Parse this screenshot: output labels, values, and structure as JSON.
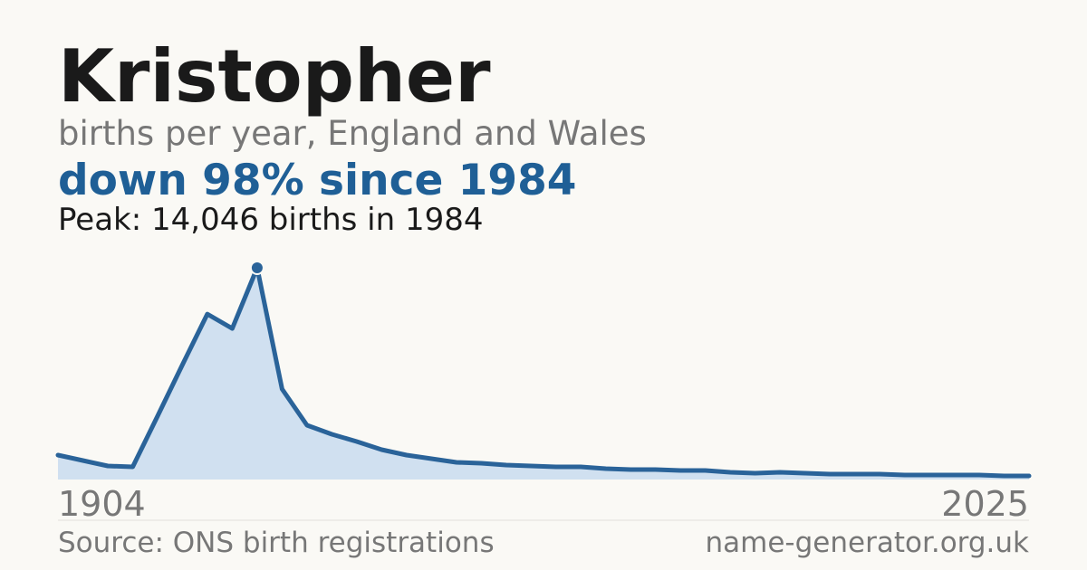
{
  "chart_data": {
    "type": "area",
    "title": "Kristopher",
    "subtitle": "births per year, England and Wales",
    "annotation": "down 98% since 1984",
    "peak_note": "Peak: 14,046 births in 1984",
    "source": "Source: ONS birth registrations",
    "site": "name-generator.org.uk",
    "categories": [
      "1904",
      null,
      null,
      null,
      null,
      null,
      null,
      null,
      null,
      null,
      null,
      null,
      null,
      null,
      null,
      null,
      null,
      null,
      null,
      null,
      null,
      null,
      null,
      null,
      null,
      null,
      null,
      null,
      null,
      null,
      null,
      null,
      null,
      null,
      null,
      null,
      null,
      null,
      null,
      "2025"
    ],
    "values": [
      1620,
      1260,
      900,
      840,
      4200,
      7620,
      10980,
      10020,
      14046,
      6000,
      3600,
      3000,
      2520,
      1980,
      1620,
      1380,
      1140,
      1080,
      960,
      900,
      840,
      840,
      720,
      660,
      660,
      600,
      600,
      480,
      420,
      480,
      420,
      360,
      360,
      360,
      300,
      300,
      300,
      300,
      240,
      240
    ],
    "ylim": [
      0,
      14046
    ],
    "color": "#2a6399",
    "fill": "#d0e0f0"
  }
}
